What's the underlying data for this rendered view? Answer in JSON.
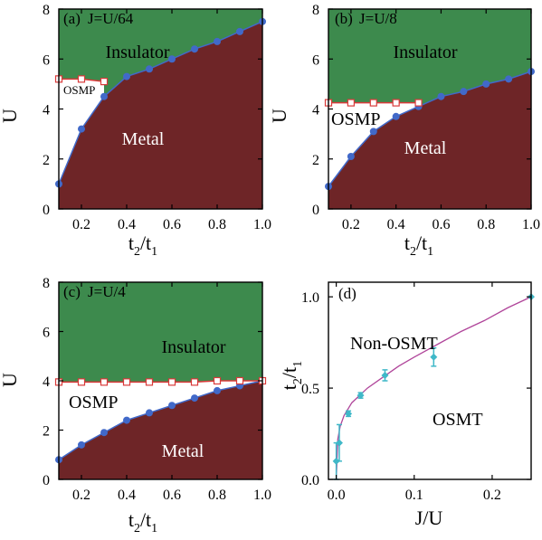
{
  "colors": {
    "insulator": "#3d8a4d",
    "metal": "#6e2527",
    "osmp": "#ffffff",
    "metal_boundary": "#4169c9",
    "osmp_boundary": "#d93a3a",
    "fit_curve": "#b0459a",
    "osmt_points": "#3fb8c8",
    "axis": "#000000"
  },
  "chart_data": [
    {
      "type": "area",
      "panel_label": "(a)",
      "coupling_label": "J=U/64",
      "xlabel_main": "t",
      "xlabel_sub1": "2",
      "xlabel_slash": "/t",
      "xlabel_sub2": "1",
      "ylabel": "U",
      "xlim": [
        0.1,
        1.0
      ],
      "ylim": [
        0,
        8
      ],
      "xticks": [
        "0.2",
        "0.4",
        "0.6",
        "0.8",
        "1.0"
      ],
      "xtick_values": [
        0.2,
        0.4,
        0.6,
        0.8,
        1.0
      ],
      "yticks": [
        "0",
        "2",
        "4",
        "6",
        "8"
      ],
      "ytick_values": [
        0,
        2,
        4,
        6,
        8
      ],
      "regions": {
        "insulator": "Insulator",
        "metal": "Metal",
        "osmp": "OSMP"
      },
      "metal_boundary": {
        "x": [
          0.1,
          0.2,
          0.3,
          0.4,
          0.5,
          0.6,
          0.7,
          0.8,
          0.9,
          1.0
        ],
        "y": [
          1.0,
          3.2,
          4.5,
          5.3,
          5.6,
          6.0,
          6.4,
          6.7,
          7.1,
          7.5
        ]
      },
      "osmp_boundary": {
        "x": [
          0.1,
          0.2,
          0.3
        ],
        "y": [
          5.2,
          5.2,
          5.1
        ]
      }
    },
    {
      "type": "area",
      "panel_label": "(b)",
      "coupling_label": "J=U/8",
      "xlabel_main": "t",
      "xlabel_sub1": "2",
      "xlabel_slash": "/t",
      "xlabel_sub2": "1",
      "ylabel": "U",
      "xlim": [
        0.1,
        1.0
      ],
      "ylim": [
        0,
        8
      ],
      "xticks": [
        "0.2",
        "0.4",
        "0.6",
        "0.8",
        "1.0"
      ],
      "xtick_values": [
        0.2,
        0.4,
        0.6,
        0.8,
        1.0
      ],
      "yticks": [
        "0",
        "2",
        "4",
        "6",
        "8"
      ],
      "ytick_values": [
        0,
        2,
        4,
        6,
        8
      ],
      "regions": {
        "insulator": "Insulator",
        "metal": "Metal",
        "osmp": "OSMP"
      },
      "metal_boundary": {
        "x": [
          0.1,
          0.2,
          0.3,
          0.4,
          0.5,
          0.6,
          0.7,
          0.8,
          0.9,
          1.0
        ],
        "y": [
          0.9,
          2.1,
          3.1,
          3.7,
          4.1,
          4.5,
          4.7,
          5.0,
          5.2,
          5.5
        ]
      },
      "osmp_boundary": {
        "x": [
          0.1,
          0.2,
          0.3,
          0.4,
          0.5
        ],
        "y": [
          4.25,
          4.25,
          4.25,
          4.25,
          4.25
        ]
      }
    },
    {
      "type": "area",
      "panel_label": "(c)",
      "coupling_label": "J=U/4",
      "xlabel_main": "t",
      "xlabel_sub1": "2",
      "xlabel_slash": "/t",
      "xlabel_sub2": "1",
      "ylabel": "U",
      "xlim": [
        0.1,
        1.0
      ],
      "ylim": [
        0,
        8
      ],
      "xticks": [
        "0.2",
        "0.4",
        "0.6",
        "0.8",
        "1.0"
      ],
      "xtick_values": [
        0.2,
        0.4,
        0.6,
        0.8,
        1.0
      ],
      "yticks": [
        "0",
        "2",
        "4",
        "6",
        "8"
      ],
      "ytick_values": [
        0,
        2,
        4,
        6,
        8
      ],
      "regions": {
        "insulator": "Insulator",
        "metal": "Metal",
        "osmp": "OSMP"
      },
      "metal_boundary": {
        "x": [
          0.1,
          0.2,
          0.3,
          0.4,
          0.5,
          0.6,
          0.7,
          0.8,
          0.9,
          1.0
        ],
        "y": [
          0.8,
          1.4,
          1.9,
          2.4,
          2.7,
          3.0,
          3.3,
          3.6,
          3.8,
          4.0
        ]
      },
      "osmp_boundary": {
        "x": [
          0.1,
          0.2,
          0.3,
          0.4,
          0.5,
          0.6,
          0.7,
          0.8,
          0.9,
          1.0
        ],
        "y": [
          3.95,
          3.95,
          3.95,
          3.95,
          3.95,
          3.95,
          3.95,
          4.0,
          4.0,
          4.0
        ]
      }
    },
    {
      "type": "scatter",
      "panel_label": "(d)",
      "xlabel": "J/U",
      "ylabel_main": "t",
      "ylabel_sub1": "2",
      "ylabel_slash": "/t",
      "ylabel_sub2": "1",
      "xlim": [
        -0.01,
        0.25
      ],
      "ylim": [
        0,
        1.08
      ],
      "xticks": [
        "0.0",
        "0.1",
        "0.2"
      ],
      "xtick_values": [
        0.0,
        0.1,
        0.2
      ],
      "yticks": [
        "0.0",
        "0.5",
        "1.0"
      ],
      "ytick_values": [
        0.0,
        0.5,
        1.0
      ],
      "regions": {
        "upper": "Non-OSMT",
        "lower": "OSMT"
      },
      "points": {
        "x": [
          0.0,
          0.0039,
          0.0156,
          0.03125,
          0.0625,
          0.125,
          0.25
        ],
        "y": [
          0.1,
          0.2,
          0.36,
          0.46,
          0.57,
          0.67,
          1.0
        ],
        "yerr": [
          0.1,
          0.1,
          0.015,
          0.015,
          0.03,
          0.05,
          0.0
        ]
      },
      "fit": {
        "x": [
          0.0,
          0.002,
          0.005,
          0.01,
          0.02,
          0.04,
          0.06,
          0.08,
          0.1,
          0.13,
          0.16,
          0.19,
          0.22,
          0.25
        ],
        "y": [
          0.0,
          0.22,
          0.29,
          0.35,
          0.42,
          0.5,
          0.56,
          0.62,
          0.67,
          0.74,
          0.81,
          0.87,
          0.94,
          1.0
        ]
      }
    }
  ]
}
